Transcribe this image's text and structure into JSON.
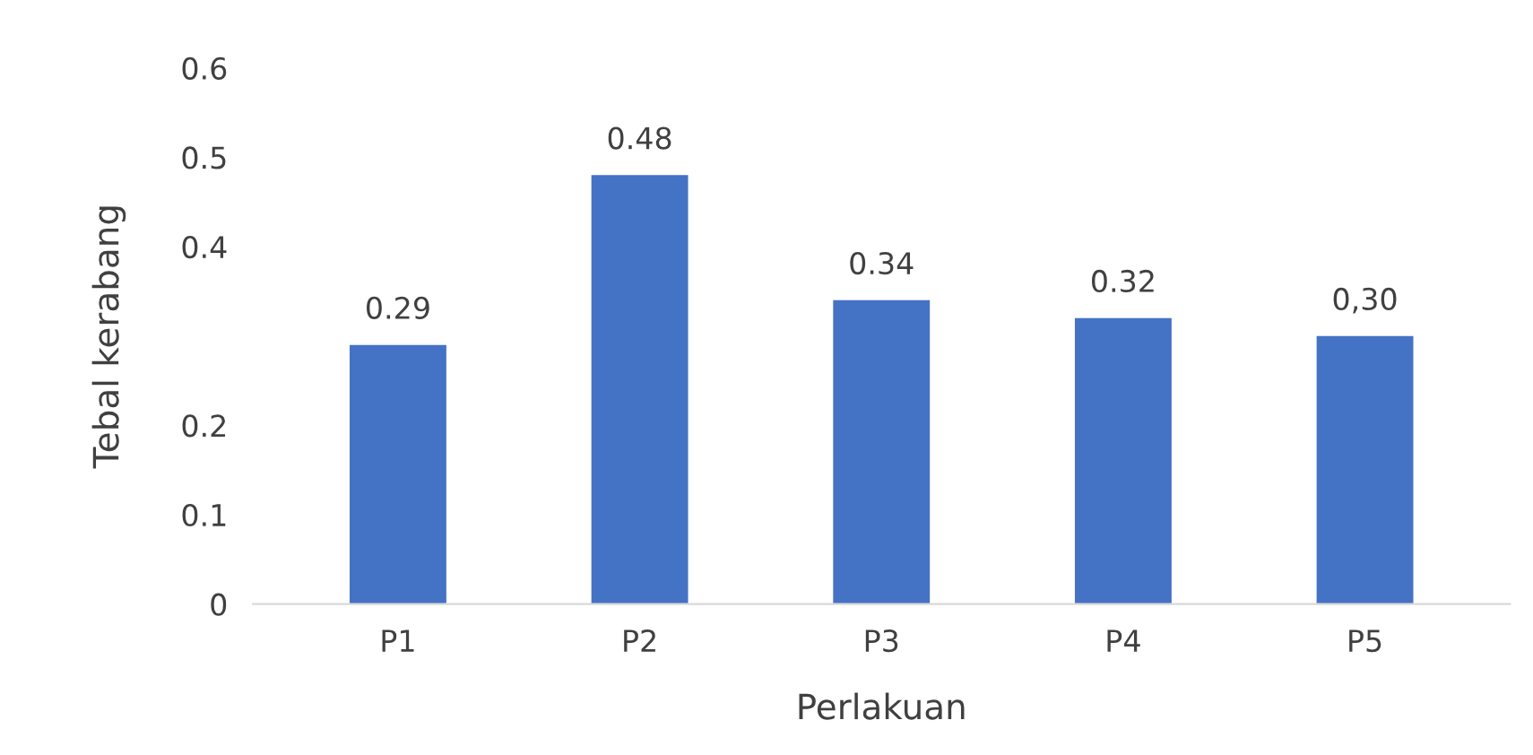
{
  "chart_data": {
    "type": "bar",
    "xlabel": "Perlakuan",
    "ylabel": "Tebal kerabang",
    "categories": [
      "P1",
      "P2",
      "P3",
      "P4",
      "P5"
    ],
    "values": [
      0.29,
      0.48,
      0.34,
      0.32,
      0.3
    ],
    "value_labels": [
      "0.29",
      "0.48",
      "0.34",
      "0.32",
      "0,30"
    ],
    "color": "#4472c4",
    "ylim": [
      0,
      0.6
    ],
    "yticks": [
      0,
      0.1,
      0.2,
      0.4,
      0.5,
      0.6
    ],
    "grid": false,
    "legend": false
  }
}
